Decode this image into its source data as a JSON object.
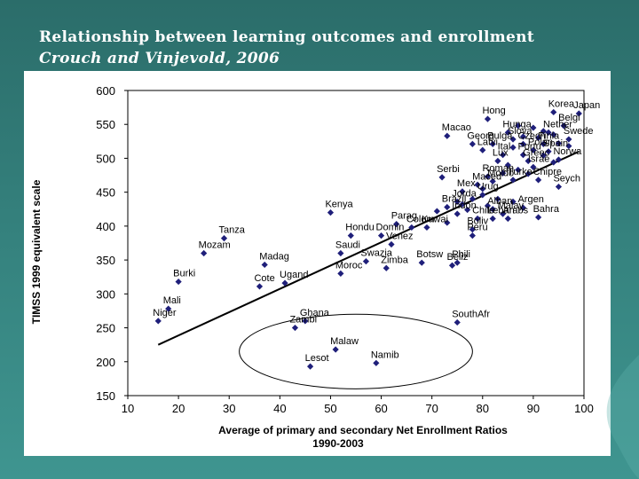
{
  "slide": {
    "title": "Relationship between learning outcomes and enrollment",
    "subtitle": "Crouch and Vinjevold, 2006"
  },
  "colors": {
    "marker": "#1f1f7a",
    "background": "#34807c"
  },
  "chart_data": {
    "type": "scatter",
    "xlabel": "Average of primary and secondary Net Enrollment Ratios",
    "xlabel2": "1990-2003",
    "ylabel": "TIMSS 1999 equivalent scale",
    "xlim": [
      10,
      100
    ],
    "ylim": [
      150,
      600
    ],
    "xticks": [
      10,
      20,
      30,
      40,
      50,
      60,
      70,
      80,
      90,
      100
    ],
    "yticks": [
      150,
      200,
      250,
      300,
      350,
      400,
      450,
      500,
      550,
      600
    ],
    "trendline": {
      "x": [
        16,
        99
      ],
      "y": [
        225,
        510
      ]
    },
    "ellipse": {
      "cx": 55,
      "cy": 215,
      "rx": 23,
      "ry": 55
    },
    "labeled_points": [
      {
        "label": "Korea",
        "x": 94,
        "y": 568
      },
      {
        "label": "Japan",
        "x": 99,
        "y": 566
      },
      {
        "label": "Belgi",
        "x": 96,
        "y": 548
      },
      {
        "label": "Hong",
        "x": 81,
        "y": 558
      },
      {
        "label": "Hunga",
        "x": 85,
        "y": 538
      },
      {
        "label": "Nether",
        "x": 93,
        "y": 538
      },
      {
        "label": "Macao",
        "x": 73,
        "y": 533
      },
      {
        "label": "Slova",
        "x": 86,
        "y": 528
      },
      {
        "label": "Swede",
        "x": 97,
        "y": 528
      },
      {
        "label": "Georg",
        "x": 78,
        "y": 521
      },
      {
        "label": "Bulga",
        "x": 82,
        "y": 521
      },
      {
        "label": "Czech",
        "x": 88,
        "y": 521
      },
      {
        "label": "Finla",
        "x": 92,
        "y": 521
      },
      {
        "label": "Latvi",
        "x": 80,
        "y": 512
      },
      {
        "label": "Polan",
        "x": 90,
        "y": 512
      },
      {
        "label": "Ital",
        "x": 84,
        "y": 505
      },
      {
        "label": "Portu",
        "x": 88,
        "y": 505
      },
      {
        "label": "Spain",
        "x": 93,
        "y": 510
      },
      {
        "label": "Lux",
        "x": 83,
        "y": 496
      },
      {
        "label": "Greec",
        "x": 89,
        "y": 496
      },
      {
        "label": "Norwa",
        "x": 95,
        "y": 498
      },
      {
        "label": "Israe",
        "x": 90,
        "y": 487
      },
      {
        "label": "Serbi",
        "x": 72,
        "y": 472
      },
      {
        "label": "Roman",
        "x": 81,
        "y": 473
      },
      {
        "label": "Moldo",
        "x": 82,
        "y": 466
      },
      {
        "label": "Turke",
        "x": 86,
        "y": 468
      },
      {
        "label": "Chipre",
        "x": 91,
        "y": 468
      },
      {
        "label": "Seych",
        "x": 95,
        "y": 458
      },
      {
        "label": "Maced",
        "x": 79,
        "y": 461
      },
      {
        "label": "Mex",
        "x": 76,
        "y": 451
      },
      {
        "label": "Urug",
        "x": 80,
        "y": 446
      },
      {
        "label": "Jorda",
        "x": 75,
        "y": 436
      },
      {
        "label": "Brazil",
        "x": 73,
        "y": 428
      },
      {
        "label": "Alban",
        "x": 82,
        "y": 425
      },
      {
        "label": "Argen",
        "x": 88,
        "y": 427
      },
      {
        "label": "Kenya",
        "x": 50,
        "y": 420
      },
      {
        "label": "Indon",
        "x": 75,
        "y": 418
      },
      {
        "label": "Malay",
        "x": 84,
        "y": 418
      },
      {
        "label": "Chile",
        "x": 79,
        "y": 411
      },
      {
        "label": "Bahra",
        "x": 91,
        "y": 413
      },
      {
        "label": "Leban",
        "x": 82,
        "y": 411
      },
      {
        "label": "Arabs",
        "x": 85,
        "y": 411
      },
      {
        "label": "Parag",
        "x": 63,
        "y": 403
      },
      {
        "label": "Colom",
        "x": 66,
        "y": 398
      },
      {
        "label": "Kuwai",
        "x": 69,
        "y": 398
      },
      {
        "label": "Boliv",
        "x": 78,
        "y": 395
      },
      {
        "label": "Peru",
        "x": 78,
        "y": 386
      },
      {
        "label": "Tanza",
        "x": 29,
        "y": 382
      },
      {
        "label": "Hondu",
        "x": 54,
        "y": 386
      },
      {
        "label": "Domin",
        "x": 60,
        "y": 386
      },
      {
        "label": "Venez",
        "x": 62,
        "y": 373
      },
      {
        "label": "Saudi",
        "x": 52,
        "y": 360
      },
      {
        "label": "Mozam",
        "x": 25,
        "y": 360
      },
      {
        "label": "Botsw",
        "x": 68,
        "y": 346
      },
      {
        "label": "Phili",
        "x": 75,
        "y": 346
      },
      {
        "label": "Swazia",
        "x": 57,
        "y": 348
      },
      {
        "label": "Zimba",
        "x": 61,
        "y": 338
      },
      {
        "label": "Beliz",
        "x": 74,
        "y": 342
      },
      {
        "label": "Madag",
        "x": 37,
        "y": 343
      },
      {
        "label": "Moroc",
        "x": 52,
        "y": 330
      },
      {
        "label": "Ugand",
        "x": 41,
        "y": 316
      },
      {
        "label": "Cote",
        "x": 36,
        "y": 311
      },
      {
        "label": "Burki",
        "x": 20,
        "y": 318
      },
      {
        "label": "Mali",
        "x": 18,
        "y": 278
      },
      {
        "label": "Niger",
        "x": 16,
        "y": 260
      },
      {
        "label": "Ghana",
        "x": 45,
        "y": 260
      },
      {
        "label": "SouthAfr",
        "x": 75,
        "y": 258
      },
      {
        "label": "Zambi",
        "x": 43,
        "y": 250
      },
      {
        "label": "Malaw",
        "x": 51,
        "y": 218
      },
      {
        "label": "Namib",
        "x": 59,
        "y": 198
      },
      {
        "label": "Lesot",
        "x": 46,
        "y": 193
      }
    ],
    "extra_points": [
      {
        "x": 87,
        "y": 548
      },
      {
        "x": 90,
        "y": 545
      },
      {
        "x": 92,
        "y": 540
      },
      {
        "x": 88,
        "y": 532
      },
      {
        "x": 91,
        "y": 530
      },
      {
        "x": 94,
        "y": 535
      },
      {
        "x": 95,
        "y": 522
      },
      {
        "x": 97,
        "y": 518
      },
      {
        "x": 86,
        "y": 516
      },
      {
        "x": 92,
        "y": 504
      },
      {
        "x": 94,
        "y": 494
      },
      {
        "x": 85,
        "y": 490
      },
      {
        "x": 87,
        "y": 483
      },
      {
        "x": 89,
        "y": 477
      },
      {
        "x": 84,
        "y": 478
      },
      {
        "x": 80,
        "y": 455
      },
      {
        "x": 83,
        "y": 440
      },
      {
        "x": 78,
        "y": 440
      },
      {
        "x": 76,
        "y": 432
      },
      {
        "x": 71,
        "y": 422
      },
      {
        "x": 77,
        "y": 424
      },
      {
        "x": 81,
        "y": 430
      },
      {
        "x": 86,
        "y": 436
      },
      {
        "x": 73,
        "y": 405
      }
    ]
  }
}
